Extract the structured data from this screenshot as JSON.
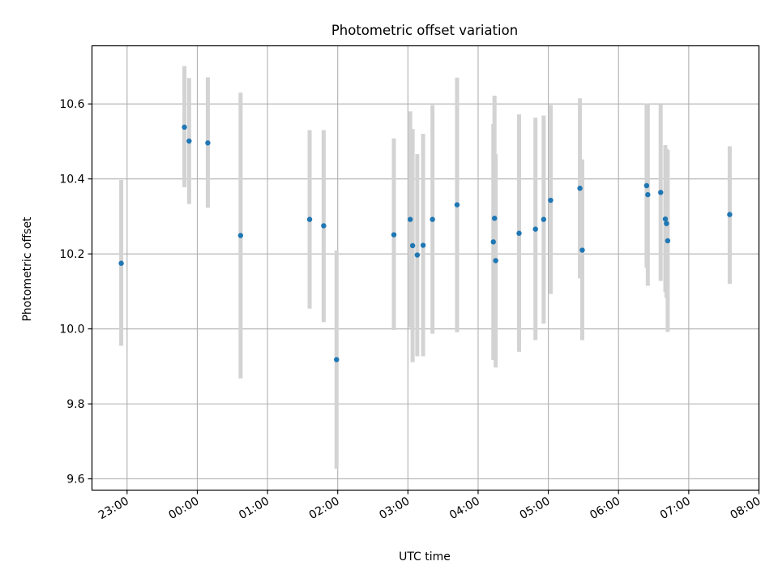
{
  "chart_data": {
    "type": "scatter",
    "title": "Photometric offset variation",
    "xlabel": "UTC time",
    "ylabel": "Photometric offset",
    "x_ticks": [
      "23:00",
      "00:00",
      "01:00",
      "02:00",
      "03:00",
      "04:00",
      "05:00",
      "06:00",
      "07:00",
      "08:00"
    ],
    "y_ticks": [
      "9.6",
      "9.8",
      "10.0",
      "10.2",
      "10.4",
      "10.6"
    ],
    "y_tick_values": [
      9.6,
      9.8,
      10.0,
      10.2,
      10.4,
      10.6
    ],
    "xlim": [
      "22:30",
      "08:00"
    ],
    "ylim": [
      9.57,
      10.755
    ],
    "grid": true,
    "marker_color": "#1f77b4",
    "errorbar_color": "#d3d3d3",
    "points": [
      {
        "x": "22:55",
        "y": 10.175,
        "yerr_low": 9.955,
        "yerr_high": 10.397
      },
      {
        "x": "23:49",
        "y": 10.538,
        "yerr_low": 10.378,
        "yerr_high": 10.701
      },
      {
        "x": "23:53",
        "y": 10.501,
        "yerr_low": 10.333,
        "yerr_high": 10.669
      },
      {
        "x": "00:09",
        "y": 10.496,
        "yerr_low": 10.323,
        "yerr_high": 10.671
      },
      {
        "x": "00:37",
        "y": 10.249,
        "yerr_low": 9.868,
        "yerr_high": 10.63
      },
      {
        "x": "01:36",
        "y": 10.292,
        "yerr_low": 10.054,
        "yerr_high": 10.53
      },
      {
        "x": "01:48",
        "y": 10.275,
        "yerr_low": 10.018,
        "yerr_high": 10.53
      },
      {
        "x": "01:59",
        "y": 9.918,
        "yerr_low": 9.627,
        "yerr_high": 10.209
      },
      {
        "x": "02:48",
        "y": 10.251,
        "yerr_low": 9.997,
        "yerr_high": 10.508
      },
      {
        "x": "03:02",
        "y": 10.292,
        "yerr_low": 10.003,
        "yerr_high": 10.58
      },
      {
        "x": "03:04",
        "y": 10.222,
        "yerr_low": 9.911,
        "yerr_high": 10.533
      },
      {
        "x": "03:08",
        "y": 10.197,
        "yerr_low": 9.927,
        "yerr_high": 10.466
      },
      {
        "x": "03:13",
        "y": 10.223,
        "yerr_low": 9.927,
        "yerr_high": 10.52
      },
      {
        "x": "03:21",
        "y": 10.292,
        "yerr_low": 9.987,
        "yerr_high": 10.597
      },
      {
        "x": "03:42",
        "y": 10.331,
        "yerr_low": 9.991,
        "yerr_high": 10.67
      },
      {
        "x": "04:13",
        "y": 10.232,
        "yerr_low": 9.917,
        "yerr_high": 10.547
      },
      {
        "x": "04:14",
        "y": 10.295,
        "yerr_low": 9.968,
        "yerr_high": 10.622
      },
      {
        "x": "04:15",
        "y": 10.182,
        "yerr_low": 9.897,
        "yerr_high": 10.466
      },
      {
        "x": "04:35",
        "y": 10.255,
        "yerr_low": 9.939,
        "yerr_high": 10.572
      },
      {
        "x": "04:49",
        "y": 10.266,
        "yerr_low": 9.97,
        "yerr_high": 10.563
      },
      {
        "x": "04:56",
        "y": 10.292,
        "yerr_low": 10.014,
        "yerr_high": 10.569
      },
      {
        "x": "05:02",
        "y": 10.343,
        "yerr_low": 10.093,
        "yerr_high": 10.597
      },
      {
        "x": "05:27",
        "y": 10.375,
        "yerr_low": 10.135,
        "yerr_high": 10.615
      },
      {
        "x": "05:29",
        "y": 10.21,
        "yerr_low": 9.97,
        "yerr_high": 10.452
      },
      {
        "x": "06:24",
        "y": 10.382,
        "yerr_low": 10.163,
        "yerr_high": 10.601
      },
      {
        "x": "06:25",
        "y": 10.358,
        "yerr_low": 10.115,
        "yerr_high": 10.601
      },
      {
        "x": "06:36",
        "y": 10.364,
        "yerr_low": 10.128,
        "yerr_high": 10.6
      },
      {
        "x": "06:40",
        "y": 10.293,
        "yerr_low": 10.098,
        "yerr_high": 10.49
      },
      {
        "x": "06:41",
        "y": 10.281,
        "yerr_low": 10.083,
        "yerr_high": 10.48
      },
      {
        "x": "06:42",
        "y": 10.235,
        "yerr_low": 9.992,
        "yerr_high": 10.477
      },
      {
        "x": "07:35",
        "y": 10.305,
        "yerr_low": 10.12,
        "yerr_high": 10.487
      }
    ]
  }
}
